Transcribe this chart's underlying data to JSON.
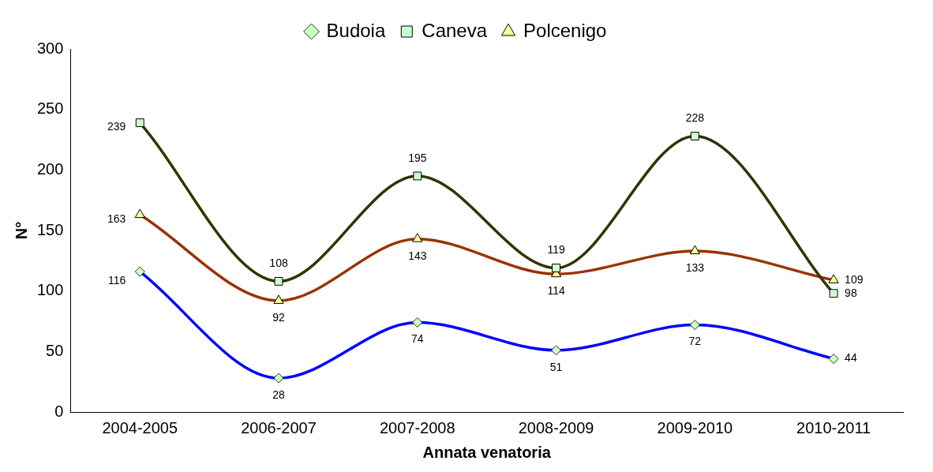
{
  "chart_data": {
    "type": "line",
    "xlabel": "Annata venatoria",
    "ylabel": "N°",
    "categories": [
      "2004-2005",
      "2006-2007",
      "2007-2008",
      "2008-2009",
      "2009-2010",
      "2010-2011"
    ],
    "series": [
      {
        "name": "Budoia",
        "color": "#0000ff",
        "marker": "diamond",
        "values": [
          116,
          28,
          74,
          51,
          72,
          44
        ]
      },
      {
        "name": "Caneva",
        "color": "#333300",
        "marker": "square",
        "values": [
          239,
          108,
          195,
          119,
          228,
          98
        ]
      },
      {
        "name": "Polcenigo",
        "color": "#993300",
        "marker": "triangle",
        "values": [
          163,
          92,
          143,
          114,
          133,
          109
        ]
      }
    ],
    "ylim": [
      0,
      300
    ],
    "yticks": [
      0,
      50,
      100,
      150,
      200,
      250,
      300
    ],
    "grid": false,
    "legend": "top",
    "data_labels": true
  }
}
